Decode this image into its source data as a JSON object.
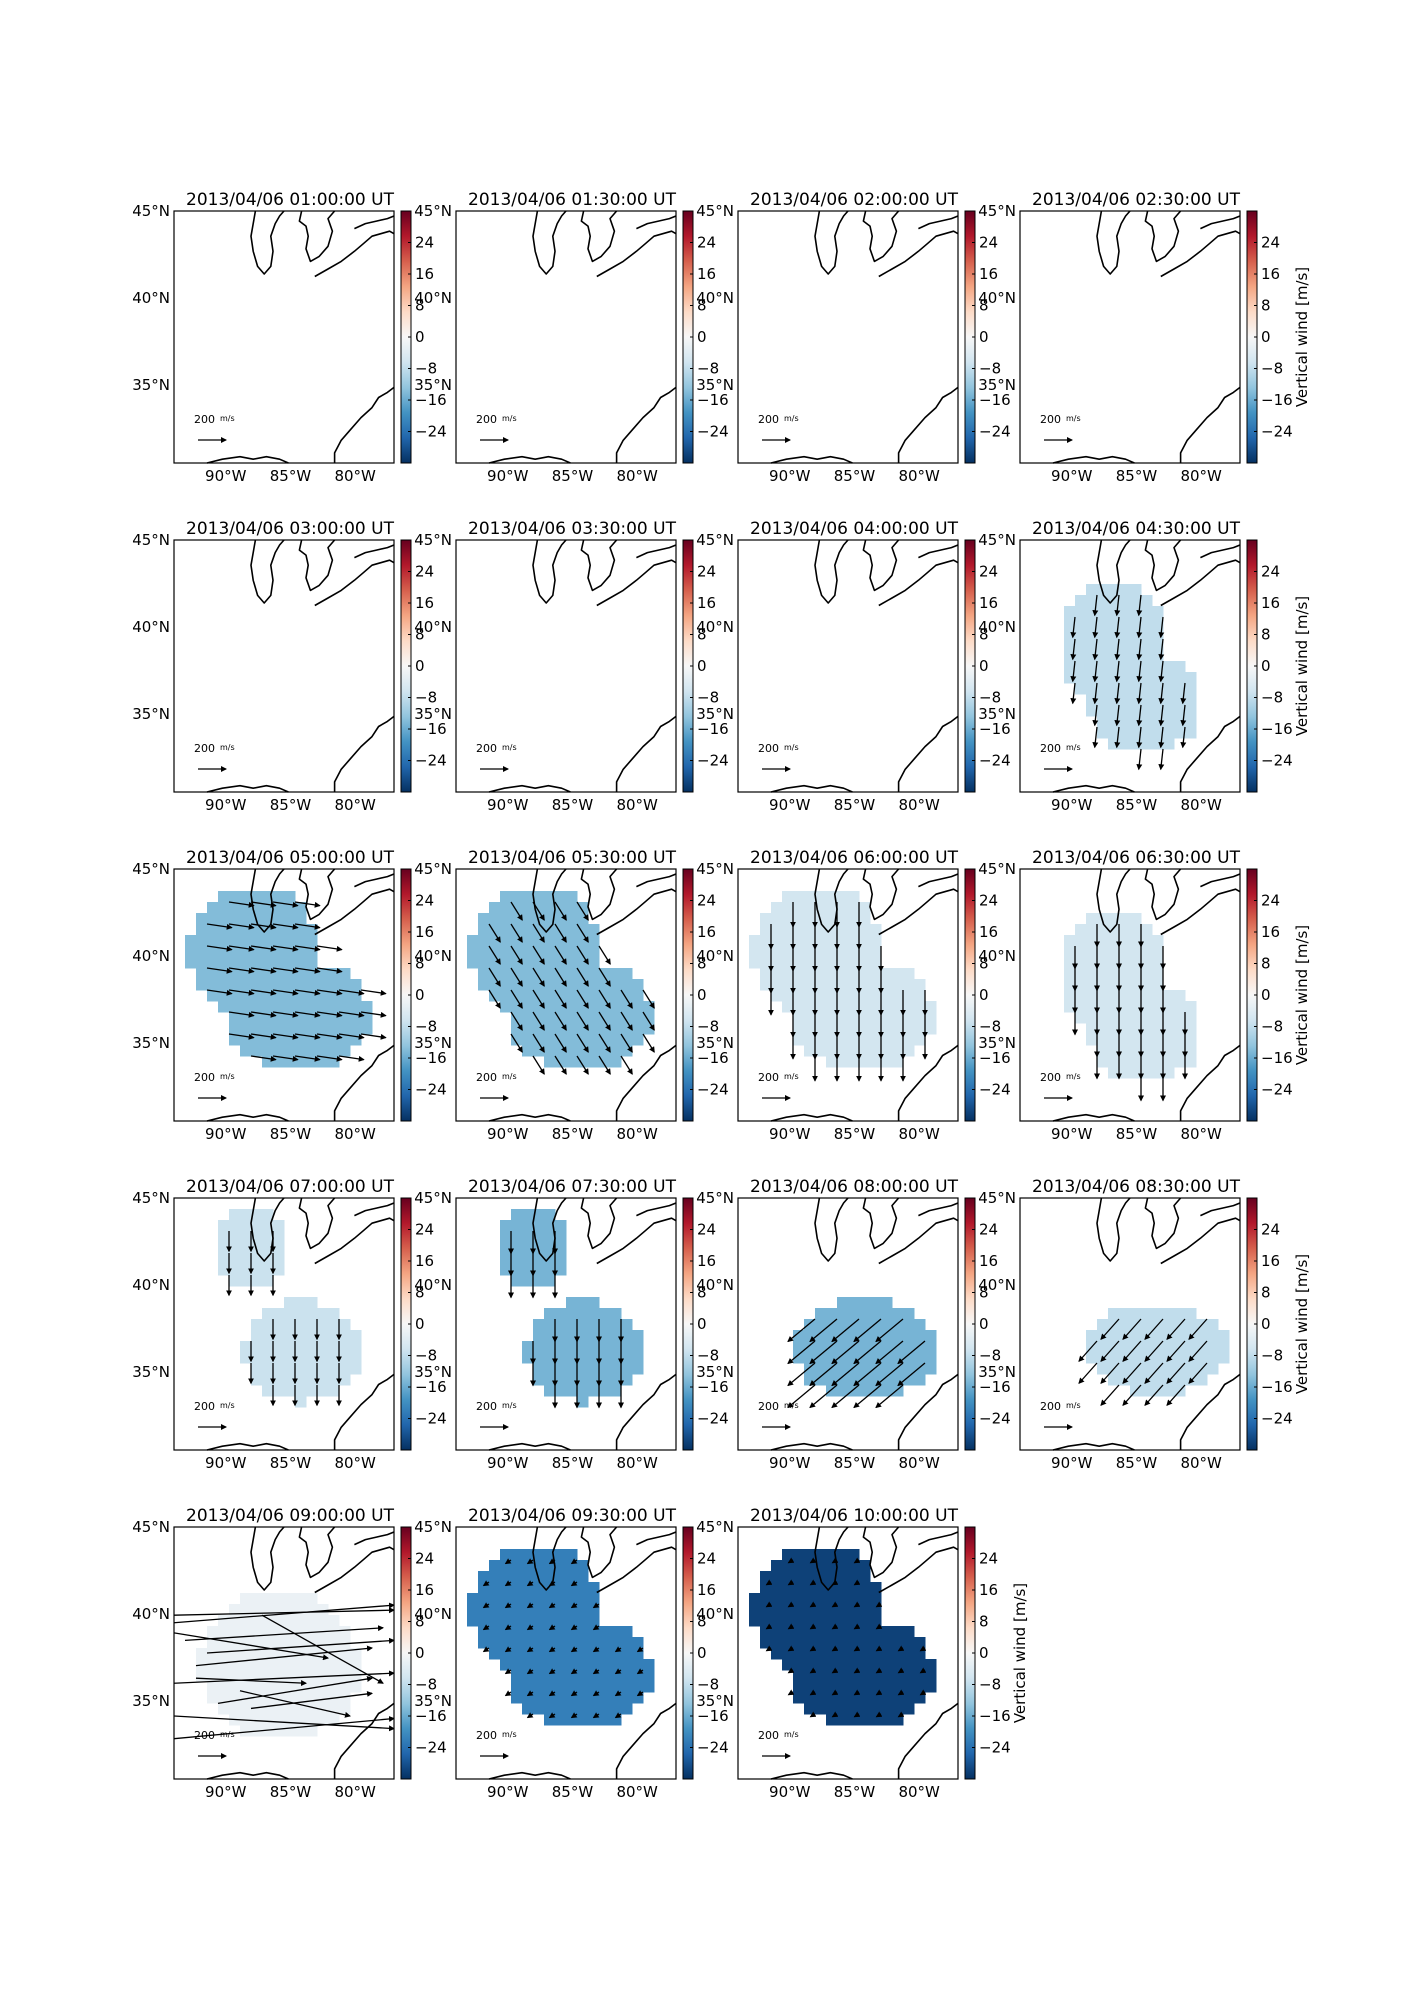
{
  "figure": {
    "colorbar": {
      "ticks": [
        "24",
        "16",
        "8",
        "0",
        "−8",
        "−16",
        "−24"
      ],
      "label": "Vertical wind [m/s]",
      "vmin": -32,
      "vmax": 32
    },
    "map": {
      "lon_range": [
        -94,
        -77
      ],
      "lat_range": [
        30.5,
        45
      ],
      "x_ticks": [
        "90°W",
        "85°W",
        "80°W"
      ],
      "y_ticks": [
        "45°N",
        "40°N",
        "35°N"
      ],
      "scale_label": "200",
      "scale_unit": "m/s"
    },
    "colors": {
      "cmap": [
        "#053061",
        "#2166ac",
        "#4393c3",
        "#92c5de",
        "#d1e5f0",
        "#f7f7f7",
        "#fddbc7",
        "#f4a582",
        "#d6604d",
        "#b2182b",
        "#67001f"
      ]
    }
  },
  "chart_data": [
    {
      "type": "heatmap",
      "title": "2013/04/06 01:00:00 UT",
      "has_data": false
    },
    {
      "type": "heatmap",
      "title": "2013/04/06 01:30:00 UT",
      "has_data": false
    },
    {
      "type": "heatmap",
      "title": "2013/04/06 02:00:00 UT",
      "has_data": false
    },
    {
      "type": "heatmap",
      "title": "2013/04/06 02:30:00 UT",
      "has_data": false
    },
    {
      "type": "heatmap",
      "title": "2013/04/06 03:00:00 UT",
      "has_data": false
    },
    {
      "type": "heatmap",
      "title": "2013/04/06 03:30:00 UT",
      "has_data": false
    },
    {
      "type": "heatmap",
      "title": "2013/04/06 04:00:00 UT",
      "has_data": false
    },
    {
      "type": "heatmap",
      "title": "2013/04/06 04:30:00 UT",
      "has_data": true,
      "value": -8,
      "region": "two-lobe",
      "vectors": {
        "u": -5,
        "v": -45
      }
    },
    {
      "type": "heatmap",
      "title": "2013/04/06 05:00:00 UT",
      "has_data": true,
      "value": -14,
      "region": "large-blob",
      "vectors": {
        "u": 55,
        "v": -8
      }
    },
    {
      "type": "heatmap",
      "title": "2013/04/06 05:30:00 UT",
      "has_data": true,
      "value": -14,
      "region": "large-blob",
      "vectors": {
        "u": 25,
        "v": -40
      }
    },
    {
      "type": "heatmap",
      "title": "2013/04/06 06:00:00 UT",
      "has_data": true,
      "value": -6,
      "region": "large-blob",
      "vectors": {
        "u": 0,
        "v": -55
      }
    },
    {
      "type": "heatmap",
      "title": "2013/04/06 06:30:00 UT",
      "has_data": true,
      "value": -6,
      "region": "two-lobe",
      "vectors": {
        "u": 0,
        "v": -50
      }
    },
    {
      "type": "heatmap",
      "title": "2013/04/06 07:00:00 UT",
      "has_data": true,
      "value": -7,
      "region": "split",
      "vectors": {
        "u": 0,
        "v": -45
      }
    },
    {
      "type": "heatmap",
      "title": "2013/04/06 07:30:00 UT",
      "has_data": true,
      "value": -15,
      "region": "split",
      "vectors": {
        "u": 0,
        "v": -50
      }
    },
    {
      "type": "heatmap",
      "title": "2013/04/06 08:00:00 UT",
      "has_data": true,
      "value": -15,
      "region": "south",
      "vectors": {
        "u": -60,
        "v": -50
      }
    },
    {
      "type": "heatmap",
      "title": "2013/04/06 08:30:00 UT",
      "has_data": true,
      "value": -8,
      "region": "south-small",
      "vectors": {
        "u": -40,
        "v": -45
      }
    },
    {
      "type": "heatmap",
      "title": "2013/04/06 09:00:00 UT",
      "has_data": true,
      "value": -2,
      "region": "streaks",
      "vectors": {
        "u": 0,
        "v": 0
      }
    },
    {
      "type": "heatmap",
      "title": "2013/04/06 09:30:00 UT",
      "has_data": true,
      "value": -22,
      "region": "large-blob",
      "vectors": {
        "u": -12,
        "v": -8
      }
    },
    {
      "type": "heatmap",
      "title": "2013/04/06 10:00:00 UT",
      "has_data": true,
      "value": -30,
      "region": "large-blob",
      "vectors": {
        "u": -10,
        "v": -6
      }
    }
  ]
}
